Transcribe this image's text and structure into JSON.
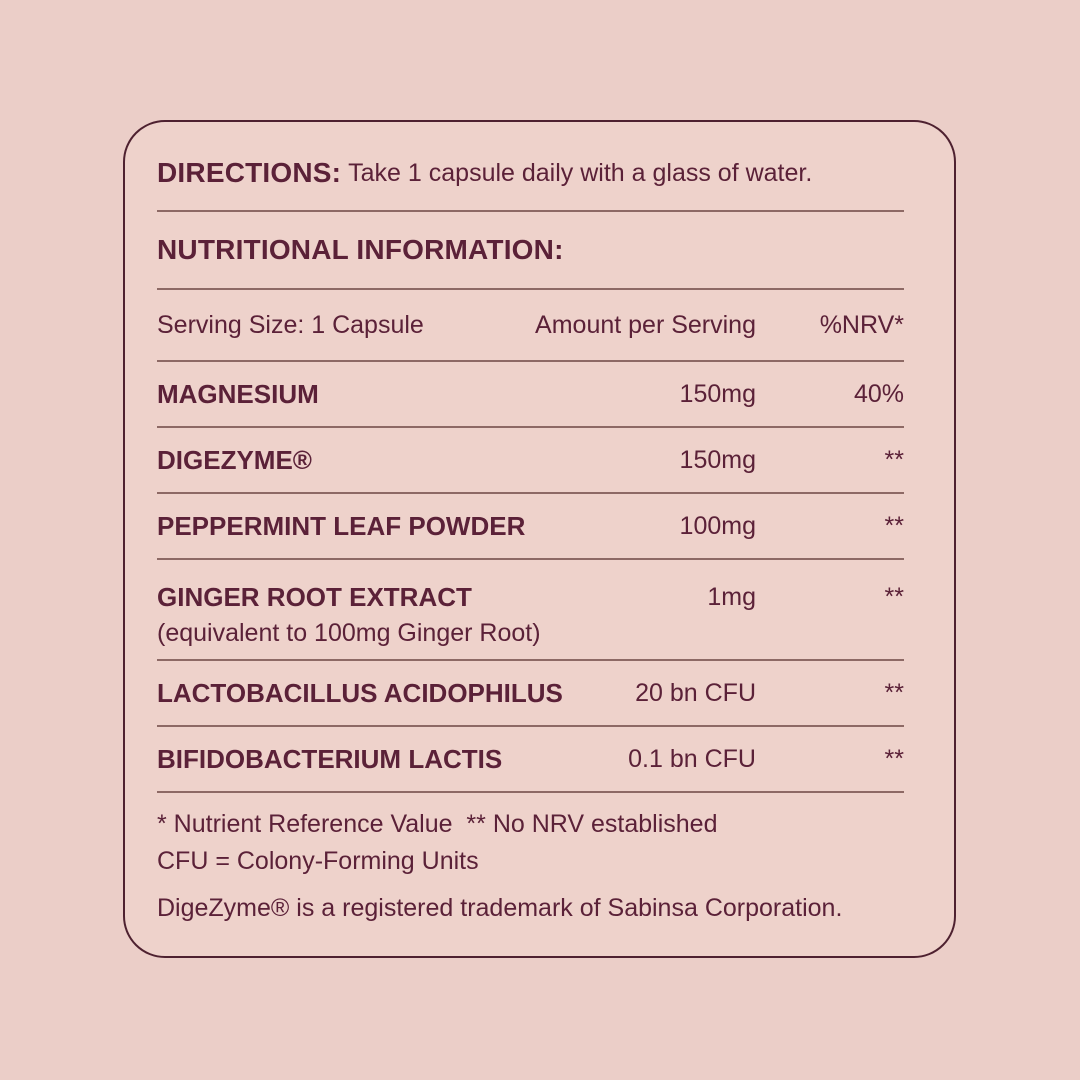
{
  "colors": {
    "page-bg": "#ebcec8",
    "card-bg": "#eed2cb",
    "ink": "#5b2138",
    "rule": "#8d6965",
    "border": "#4e2130"
  },
  "directions": {
    "label": "DIRECTIONS:",
    "text": " Take 1 capsule daily with a glass of water."
  },
  "nutrition": {
    "heading": "NUTRITIONAL INFORMATION:",
    "columns": {
      "serving": "Serving Size: 1 Capsule",
      "amount": "Amount per Serving",
      "nrv": "%NRV*"
    },
    "rows": [
      {
        "name": "MAGNESIUM",
        "amount": "150mg",
        "nrv": "40%"
      },
      {
        "name": "DIGEZYME®",
        "amount": "150mg",
        "nrv": "**"
      },
      {
        "name": "PEPPERMINT LEAF POWDER",
        "amount": "100mg",
        "nrv": "**"
      },
      {
        "name": "GINGER ROOT EXTRACT",
        "sub": "(equivalent to 100mg Ginger Root)",
        "amount": "1mg",
        "nrv": "**"
      },
      {
        "name": "LACTOBACILLUS ACIDOPHILUS",
        "amount": "20 bn CFU",
        "nrv": "**"
      },
      {
        "name": "BIFIDOBACTERIUM LACTIS",
        "amount": "0.1 bn CFU",
        "nrv": "**"
      }
    ],
    "footnotes": [
      "* Nutrient Reference Value  ** No NRV established",
      "CFU = Colony-Forming Units"
    ],
    "trademark": "DigeZyme® is a registered trademark of Sabinsa Corporation."
  }
}
